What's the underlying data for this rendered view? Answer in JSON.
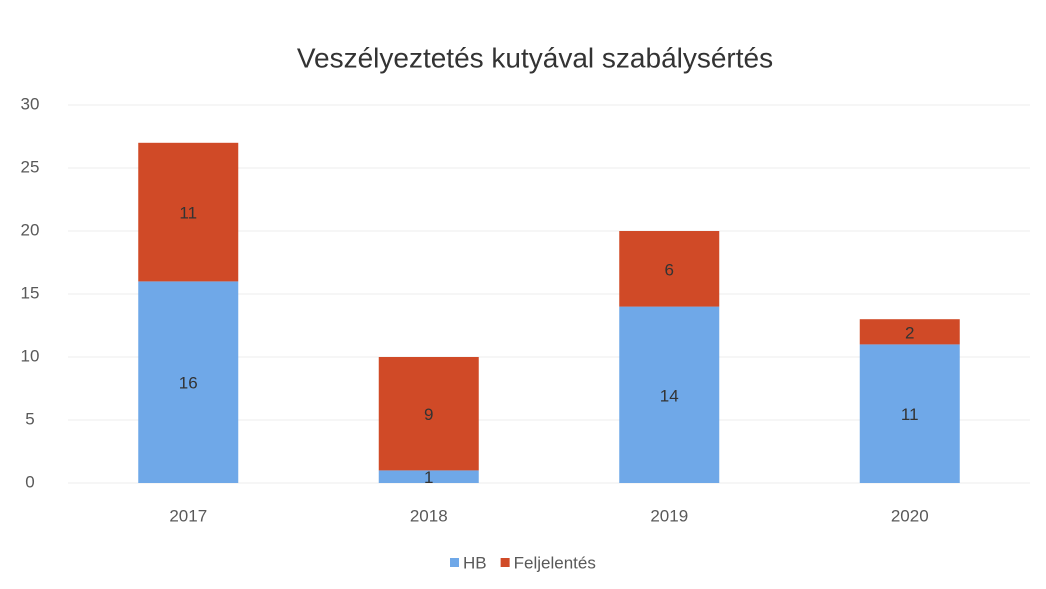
{
  "chart_data": {
    "type": "stacked_bar",
    "title": "Veszélyeztetés kutyával szabálysértés",
    "categories": [
      "2017",
      "2018",
      "2019",
      "2020"
    ],
    "series": [
      {
        "name": "HB",
        "color": "#6fa8e8",
        "values": [
          16,
          1,
          14,
          11
        ]
      },
      {
        "name": "Feljelentés",
        "color": "#d04a27",
        "values": [
          11,
          9,
          6,
          2
        ]
      }
    ],
    "ylim": [
      0,
      30
    ],
    "yticks": [
      0,
      5,
      10,
      15,
      20,
      25,
      30
    ],
    "grid": true,
    "legend": "bottom"
  }
}
